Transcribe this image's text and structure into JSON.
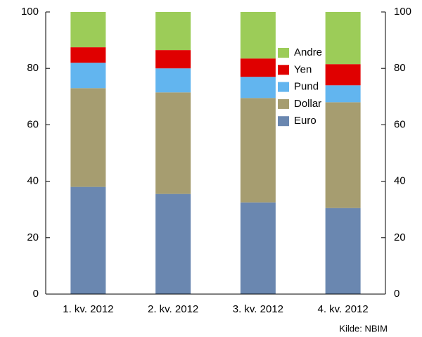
{
  "chart_data": {
    "type": "stacked_bar",
    "categories": [
      "1. kv. 2012",
      "2. kv. 2012",
      "3. kv. 2012",
      "4. kv. 2012"
    ],
    "series": [
      {
        "name": "Euro",
        "color": "#6a87b0",
        "values": [
          38,
          35.5,
          32.5,
          30.5
        ]
      },
      {
        "name": "Dollar",
        "color": "#a69d70",
        "values": [
          35,
          36,
          37,
          37.5
        ]
      },
      {
        "name": "Pund",
        "color": "#62b5ef",
        "values": [
          9,
          8.5,
          7.5,
          6
        ]
      },
      {
        "name": "Yen",
        "color": "#e00000",
        "values": [
          5.5,
          6.5,
          6.5,
          7.5
        ]
      },
      {
        "name": "Andre",
        "color": "#9ccc58",
        "values": [
          12.5,
          13.5,
          16.5,
          18.5
        ]
      }
    ],
    "ylim": [
      0,
      100
    ],
    "yticks": [
      0,
      20,
      40,
      60,
      80,
      100
    ],
    "legend_position": "top-right",
    "source": "Kilde: NBIM"
  }
}
